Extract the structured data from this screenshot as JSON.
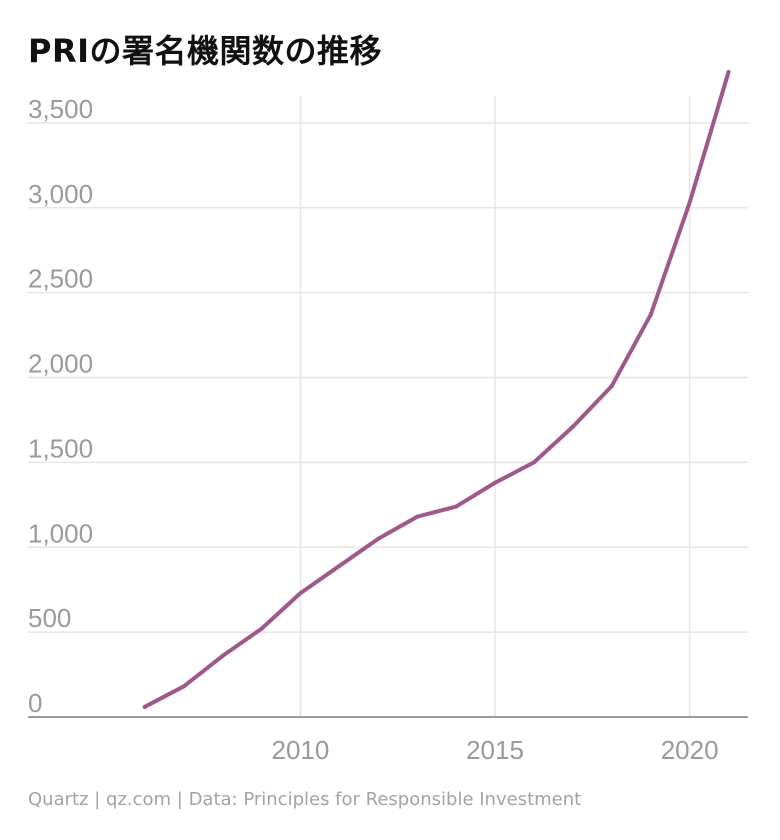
{
  "title": "PRIの署名機関数の推移",
  "source": "Quartz | qz.com | Data: Principles for Responsible Investment",
  "colors": {
    "line": "#a2578a",
    "grid": "#e6e6e6",
    "axis": "#9a9a9a",
    "tick_text": "#9a9a9a"
  },
  "chart_data": {
    "type": "line",
    "title": "PRIの署名機関数の推移",
    "xlabel": "",
    "ylabel": "",
    "xlim": [
      2003,
      2021.5
    ],
    "ylim": [
      0,
      3800
    ],
    "x_ticks": [
      2010,
      2015,
      2020
    ],
    "x_tick_labels": [
      "2010",
      "2015",
      "2020"
    ],
    "y_ticks": [
      0,
      500,
      1000,
      1500,
      2000,
      2500,
      3000,
      3500
    ],
    "y_tick_labels": [
      "0",
      "500",
      "1,000",
      "1,500",
      "2,000",
      "2,500",
      "3,000",
      "3,500"
    ],
    "grid": true,
    "legend": "none",
    "series": [
      {
        "x": [
          2006,
          2007,
          2008,
          2009,
          2010,
          2011,
          2012,
          2013,
          2014,
          2015,
          2016,
          2017,
          2018,
          2019,
          2020,
          2021
        ],
        "y": [
          60,
          180,
          360,
          520,
          730,
          890,
          1050,
          1180,
          1240,
          1380,
          1500,
          1710,
          1950,
          2370,
          3030,
          3800
        ]
      }
    ]
  }
}
